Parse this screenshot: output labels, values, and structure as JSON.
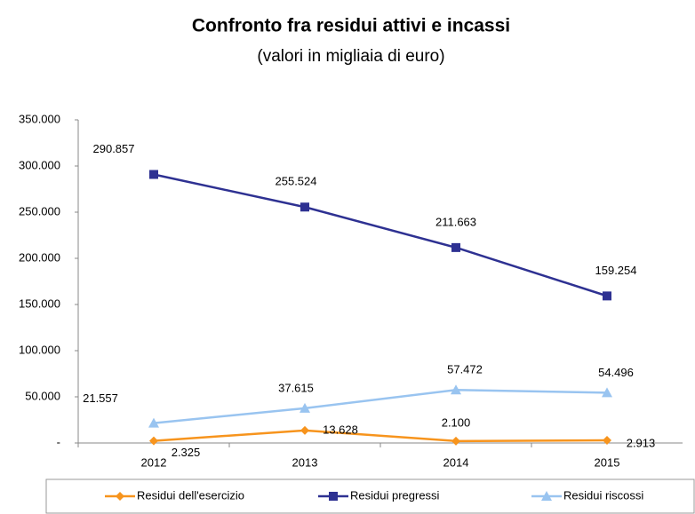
{
  "chart_data": {
    "type": "line",
    "title": "Confronto fra residui attivi e incassi",
    "subtitle": "(valori in migliaia di euro)",
    "categories": [
      "2012",
      "2013",
      "2014",
      "2015"
    ],
    "series": [
      {
        "name": "Residui dell'esercizio",
        "color": "#f7941d",
        "marker": "diamond",
        "values": [
          2325,
          13628,
          2100,
          2913
        ],
        "value_labels": [
          "2.325",
          "13.628",
          "2.100",
          "2.913"
        ]
      },
      {
        "name": "Residui pregressi",
        "color": "#2e3192",
        "marker": "square",
        "values": [
          290857,
          255524,
          211663,
          159254
        ],
        "value_labels": [
          "290.857",
          "255.524",
          "211.663",
          "159.254"
        ]
      },
      {
        "name": "Residui riscossi",
        "color": "#99c4f0",
        "marker": "triangle",
        "values": [
          21557,
          37615,
          57472,
          54496
        ],
        "value_labels": [
          "21.557",
          "37.615",
          "57.472",
          "54.496"
        ]
      }
    ],
    "ylim": [
      0,
      350000
    ],
    "yticks": [
      {
        "value": 0,
        "label": "-"
      },
      {
        "value": 50000,
        "label": "50.000"
      },
      {
        "value": 100000,
        "label": "100.000"
      },
      {
        "value": 150000,
        "label": "150.000"
      },
      {
        "value": 200000,
        "label": "200.000"
      },
      {
        "value": 250000,
        "label": "250.000"
      },
      {
        "value": 300000,
        "label": "300.000"
      },
      {
        "value": 350000,
        "label": "350.000"
      }
    ],
    "legend": "bottom"
  }
}
